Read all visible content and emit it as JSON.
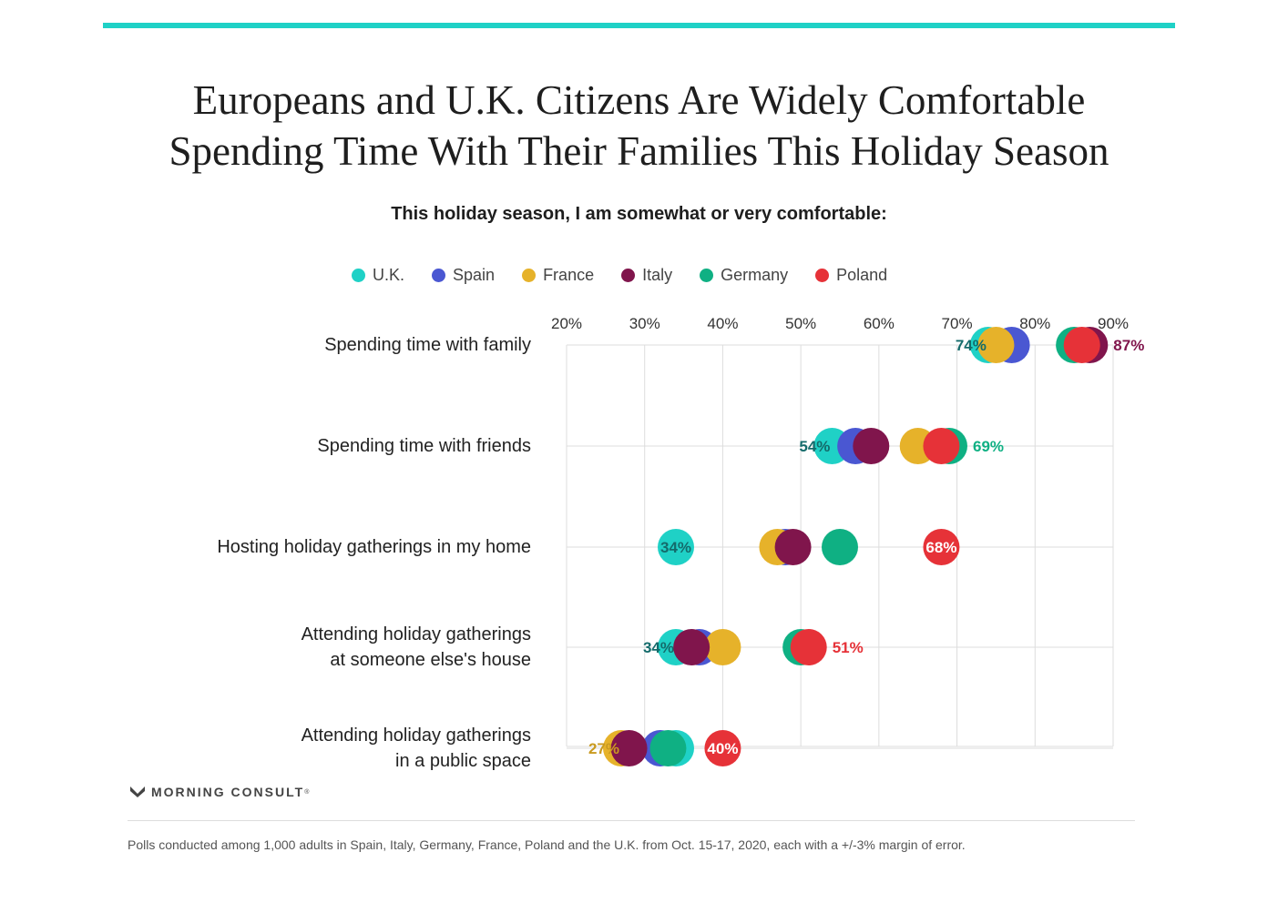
{
  "chart_data": {
    "type": "scatter",
    "title_lines": [
      "Europeans and U.K. Citizens Are Widely Comfortable",
      "Spending Time With Their Families This Holiday Season"
    ],
    "subtitle": "This holiday season, I am somewhat or very comfortable:",
    "xlim": [
      20,
      90
    ],
    "x_ticks": [
      20,
      30,
      40,
      50,
      60,
      70,
      80,
      90
    ],
    "x_tick_labels": [
      "20%",
      "30%",
      "40%",
      "50%",
      "60%",
      "70%",
      "80%",
      "90%"
    ],
    "legend_position": "top-center",
    "series": [
      {
        "name": "U.K.",
        "color": "#1fd1c6"
      },
      {
        "name": "Spain",
        "color": "#4a57d2"
      },
      {
        "name": "France",
        "color": "#e6b22a"
      },
      {
        "name": "Italy",
        "color": "#80154c"
      },
      {
        "name": "Germany",
        "color": "#0fb083"
      },
      {
        "name": "Poland",
        "color": "#e63238"
      }
    ],
    "categories": [
      {
        "label_lines": [
          "Spending time with family"
        ],
        "values": {
          "U.K.": 74,
          "Spain": 77,
          "France": 75,
          "Italy": 87,
          "Germany": 85,
          "Poland": 86
        },
        "annotations": [
          {
            "text": "74%",
            "side": "left",
            "series": "U.K.",
            "color": "#146b6b"
          },
          {
            "text": "87%",
            "side": "right",
            "series": "Italy",
            "color": "#80154c"
          }
        ]
      },
      {
        "label_lines": [
          "Spending time with friends"
        ],
        "values": {
          "U.K.": 54,
          "Spain": 57,
          "France": 65,
          "Italy": 59,
          "Germany": 69,
          "Poland": 68
        },
        "annotations": [
          {
            "text": "54%",
            "side": "left",
            "series": "U.K.",
            "color": "#146b6b"
          },
          {
            "text": "69%",
            "side": "right",
            "series": "Germany",
            "color": "#0fb083"
          }
        ]
      },
      {
        "label_lines": [
          "Hosting holiday gatherings in my home"
        ],
        "values": {
          "U.K.": 34,
          "Spain": 48,
          "France": 47,
          "Italy": 49,
          "Germany": 55,
          "Poland": 68
        },
        "annotations": [
          {
            "text": "34%",
            "side": "inside",
            "series": "U.K.",
            "color": "#146b6b"
          },
          {
            "text": "68%",
            "side": "inside",
            "series": "Poland",
            "color": "#ffffff"
          }
        ]
      },
      {
        "label_lines": [
          "Attending holiday gatherings",
          "at someone else's house"
        ],
        "values": {
          "U.K.": 34,
          "Spain": 37,
          "France": 40,
          "Italy": 36,
          "Germany": 50,
          "Poland": 51
        },
        "annotations": [
          {
            "text": "34%",
            "side": "left",
            "series": "U.K.",
            "color": "#146b6b"
          },
          {
            "text": "51%",
            "side": "right",
            "series": "Poland",
            "color": "#e63238"
          }
        ]
      },
      {
        "label_lines": [
          "Attending holiday gatherings",
          "in a public space"
        ],
        "values": {
          "U.K.": 34,
          "Spain": 32,
          "France": 27,
          "Italy": 28,
          "Germany": 33,
          "Poland": 40
        },
        "annotations": [
          {
            "text": "27%",
            "side": "left",
            "series": "France",
            "color": "#c99a1f"
          },
          {
            "text": "40%",
            "side": "inside",
            "series": "Poland",
            "color": "#ffffff"
          }
        ]
      }
    ]
  },
  "brand": {
    "name": "MORNING CONSULT",
    "mark": "®"
  },
  "footnote": "Polls conducted among 1,000 adults in Spain, Italy, Germany, France, Poland and the U.K. from Oct. 15-17, 2020, each with a +/-3% margin of error.",
  "colors": {
    "accent_bar": "#1fd1c6",
    "grid": "#dddddd"
  }
}
